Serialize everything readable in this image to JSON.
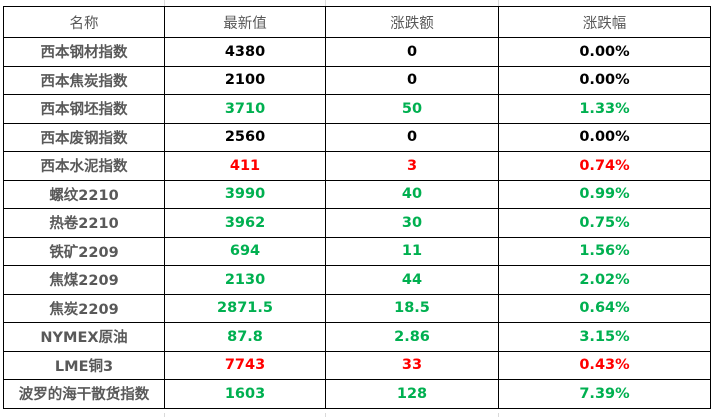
{
  "colors": {
    "green": "#00b050",
    "red": "#ff0000",
    "black": "#000000",
    "label": "#595959"
  },
  "headers": [
    "名称",
    "最新值",
    "涨跌额",
    "涨跌幅"
  ],
  "rows": [
    {
      "name": "西本钢材指数",
      "value": "4380",
      "change": "0",
      "pct": "0.00%",
      "color": "black"
    },
    {
      "name": "西本焦炭指数",
      "value": "2100",
      "change": "0",
      "pct": "0.00%",
      "color": "black"
    },
    {
      "name": "西本钢坯指数",
      "value": "3710",
      "change": "50",
      "pct": "1.33%",
      "color": "green"
    },
    {
      "name": "西本废钢指数",
      "value": "2560",
      "change": "0",
      "pct": "0.00%",
      "color": "black"
    },
    {
      "name": "西本水泥指数",
      "value": "411",
      "change": "3",
      "pct": "0.74%",
      "color": "red"
    },
    {
      "name": "螺纹2210",
      "value": "3990",
      "change": "40",
      "pct": "0.99%",
      "color": "green"
    },
    {
      "name": "热卷2210",
      "value": "3962",
      "change": "30",
      "pct": "0.75%",
      "color": "green"
    },
    {
      "name": "铁矿2209",
      "value": "694",
      "change": "11",
      "pct": "1.56%",
      "color": "green"
    },
    {
      "name": "焦煤2209",
      "value": "2130",
      "change": "44",
      "pct": "2.02%",
      "color": "green"
    },
    {
      "name": "焦炭2209",
      "value": "2871.5",
      "change": "18.5",
      "pct": "0.64%",
      "color": "green"
    },
    {
      "name": "NYMEX原油",
      "value": "87.8",
      "change": "2.86",
      "pct": "3.15%",
      "color": "green"
    },
    {
      "name": "LME铜3",
      "value": "7743",
      "change": "33",
      "pct": "0.43%",
      "color": "red"
    },
    {
      "name": "波罗的海干散货指数",
      "value": "1603",
      "change": "128",
      "pct": "7.39%",
      "color": "green"
    }
  ]
}
